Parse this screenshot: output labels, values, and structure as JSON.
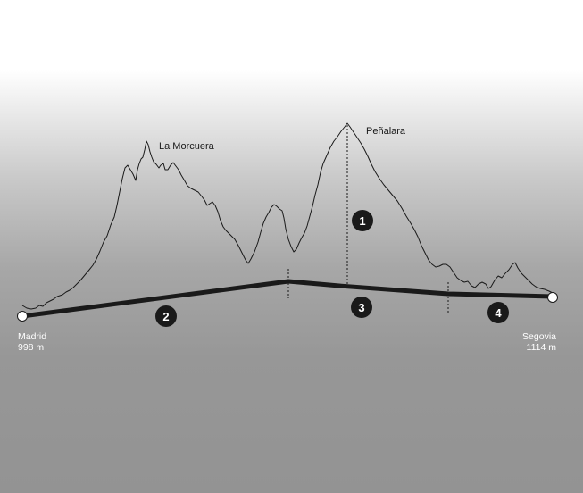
{
  "peaks": {
    "left": "La Morcuera",
    "right": "Peñalara"
  },
  "start": {
    "name": "Madrid",
    "elevation": "998 m"
  },
  "end": {
    "name": "Segovia",
    "elevation": "1114 m"
  },
  "markers": [
    "1",
    "2",
    "3",
    "4"
  ],
  "colors": {
    "profile_line": "#1a1a1a",
    "route_line": "#1a1a1a",
    "marker_fill": "#1a1a1a",
    "endpoint_fill": "#ffffff"
  }
}
